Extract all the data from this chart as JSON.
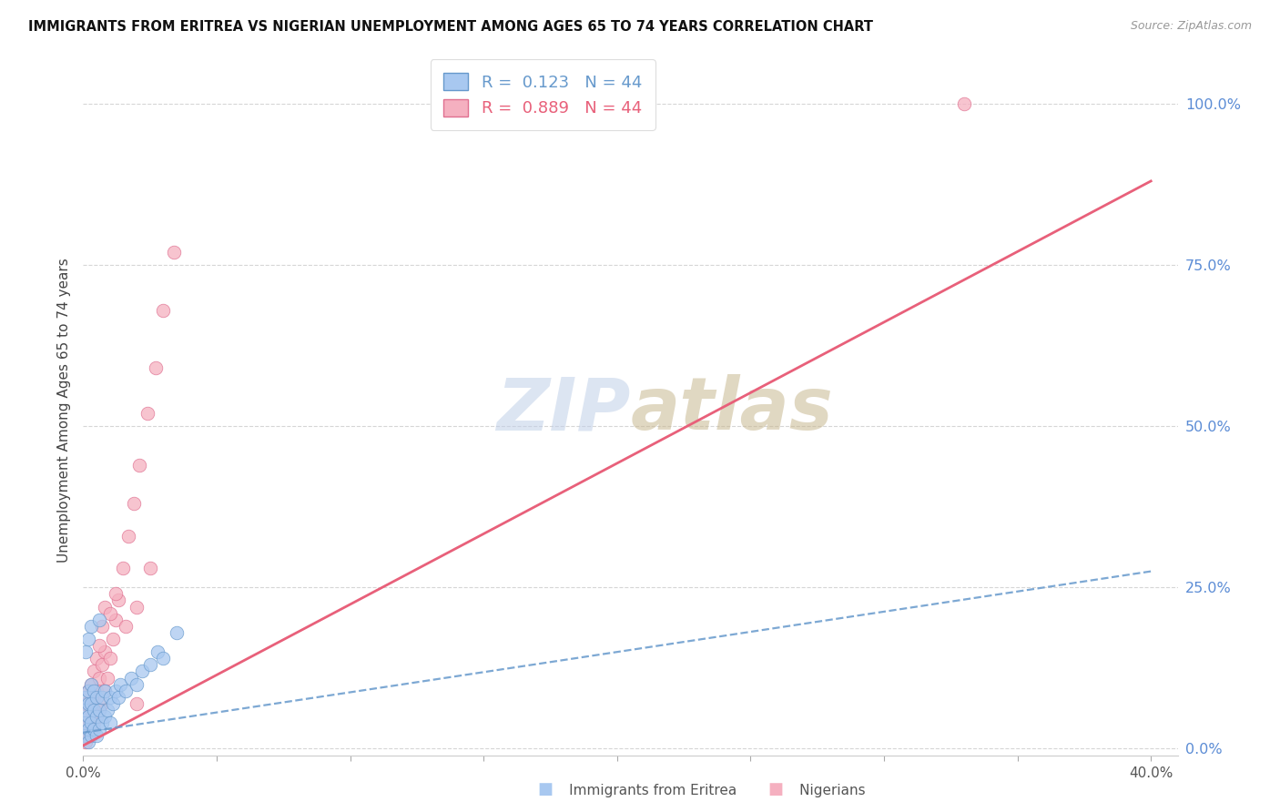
{
  "title": "IMMIGRANTS FROM ERITREA VS NIGERIAN UNEMPLOYMENT AMONG AGES 65 TO 74 YEARS CORRELATION CHART",
  "source": "Source: ZipAtlas.com",
  "ylabel": "Unemployment Among Ages 65 to 74 years",
  "xlim": [
    0.0,
    0.41
  ],
  "ylim": [
    -0.01,
    1.06
  ],
  "xtick_positions": [
    0.0,
    0.05,
    0.1,
    0.15,
    0.2,
    0.25,
    0.3,
    0.35,
    0.4
  ],
  "xtick_labels": [
    "0.0%",
    "",
    "",
    "",
    "",
    "",
    "",
    "",
    "40.0%"
  ],
  "ytick_right_positions": [
    0.0,
    0.25,
    0.5,
    0.75,
    1.0
  ],
  "ytick_right_labels": [
    "0.0%",
    "25.0%",
    "50.0%",
    "75.0%",
    "100.0%"
  ],
  "legend_R_blue": "0.123",
  "legend_N_blue": "44",
  "legend_R_pink": "0.889",
  "legend_N_pink": "44",
  "blue_scatter_color": "#A8C8F0",
  "blue_edge_color": "#6699CC",
  "pink_scatter_color": "#F5B0C0",
  "pink_edge_color": "#E07090",
  "blue_line_color": "#6699CC",
  "pink_line_color": "#E8607A",
  "grid_color": "#CCCCCC",
  "background_color": "#FFFFFF",
  "watermark_text": "ZIPatlas",
  "watermark_color_zip": "#C8D8EE",
  "watermark_color_atlas": "#C8B898",
  "title_color": "#111111",
  "source_color": "#999999",
  "right_axis_color": "#5B8CD5",
  "eritrea_x": [
    0.001,
    0.001,
    0.001,
    0.001,
    0.002,
    0.002,
    0.002,
    0.002,
    0.002,
    0.003,
    0.003,
    0.003,
    0.003,
    0.004,
    0.004,
    0.004,
    0.005,
    0.005,
    0.005,
    0.006,
    0.006,
    0.007,
    0.007,
    0.008,
    0.008,
    0.009,
    0.01,
    0.01,
    0.011,
    0.012,
    0.013,
    0.014,
    0.016,
    0.018,
    0.02,
    0.022,
    0.025,
    0.028,
    0.03,
    0.035,
    0.001,
    0.002,
    0.003,
    0.006
  ],
  "eritrea_y": [
    0.02,
    0.04,
    0.06,
    0.08,
    0.01,
    0.03,
    0.05,
    0.07,
    0.09,
    0.02,
    0.04,
    0.07,
    0.1,
    0.03,
    0.06,
    0.09,
    0.02,
    0.05,
    0.08,
    0.03,
    0.06,
    0.04,
    0.08,
    0.05,
    0.09,
    0.06,
    0.04,
    0.08,
    0.07,
    0.09,
    0.08,
    0.1,
    0.09,
    0.11,
    0.1,
    0.12,
    0.13,
    0.15,
    0.14,
    0.18,
    0.15,
    0.17,
    0.19,
    0.2
  ],
  "nigerian_x": [
    0.001,
    0.001,
    0.001,
    0.002,
    0.002,
    0.002,
    0.003,
    0.003,
    0.003,
    0.004,
    0.004,
    0.004,
    0.005,
    0.005,
    0.005,
    0.006,
    0.006,
    0.007,
    0.007,
    0.008,
    0.008,
    0.009,
    0.01,
    0.011,
    0.012,
    0.013,
    0.015,
    0.017,
    0.019,
    0.021,
    0.024,
    0.027,
    0.03,
    0.034,
    0.006,
    0.007,
    0.008,
    0.01,
    0.012,
    0.016,
    0.02,
    0.025,
    0.33,
    0.02
  ],
  "nigerian_y": [
    0.01,
    0.04,
    0.07,
    0.02,
    0.05,
    0.09,
    0.03,
    0.06,
    0.1,
    0.04,
    0.08,
    0.12,
    0.05,
    0.09,
    0.14,
    0.06,
    0.11,
    0.07,
    0.13,
    0.09,
    0.15,
    0.11,
    0.14,
    0.17,
    0.2,
    0.23,
    0.28,
    0.33,
    0.38,
    0.44,
    0.52,
    0.59,
    0.68,
    0.77,
    0.16,
    0.19,
    0.22,
    0.21,
    0.24,
    0.19,
    0.22,
    0.28,
    1.0,
    0.07
  ],
  "blue_trend_x0": 0.0,
  "blue_trend_x1": 0.4,
  "blue_trend_y0": 0.025,
  "blue_trend_y1": 0.275,
  "pink_trend_x0": 0.0,
  "pink_trend_x1": 0.4,
  "pink_trend_y0": 0.005,
  "pink_trend_y1": 0.88
}
